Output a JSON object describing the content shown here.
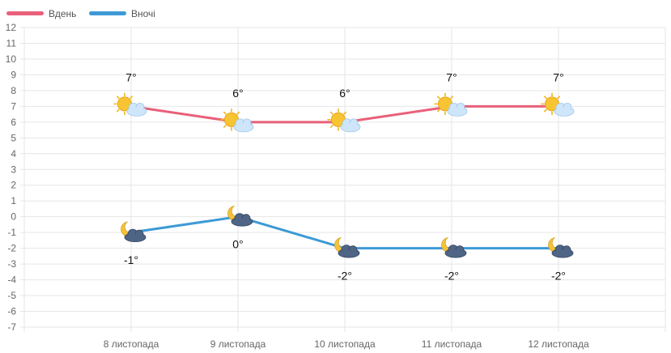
{
  "chart_data": {
    "type": "line",
    "categories": [
      "8 листопада",
      "9 листопада",
      "10 листопада",
      "11 листопада",
      "12 листопада"
    ],
    "series": [
      {
        "name": "Вдень",
        "color": "#e8607a",
        "values": [
          7,
          6,
          6,
          7,
          7
        ],
        "labels": [
          "7°",
          "6°",
          "6°",
          "7°",
          "7°"
        ],
        "icon": "sun-behind-cloud-icon"
      },
      {
        "name": "Вночі",
        "color": "#3d9ad6",
        "values": [
          -1,
          0,
          -2,
          -2,
          -2
        ],
        "labels": [
          "-1°",
          "0°",
          "-2°",
          "-2°",
          "-2°"
        ],
        "icon": "moon-dark-cloud-icon"
      }
    ],
    "yticks": [
      "12",
      "11",
      "10",
      "9",
      "8",
      "7",
      "6",
      "5",
      "4",
      "3",
      "2",
      "1",
      "0",
      "-1",
      "-2",
      "-3",
      "-4",
      "-5",
      "-6",
      "-7"
    ],
    "ylim": [
      -7,
      12
    ],
    "grid": true,
    "legend": "top-left"
  }
}
